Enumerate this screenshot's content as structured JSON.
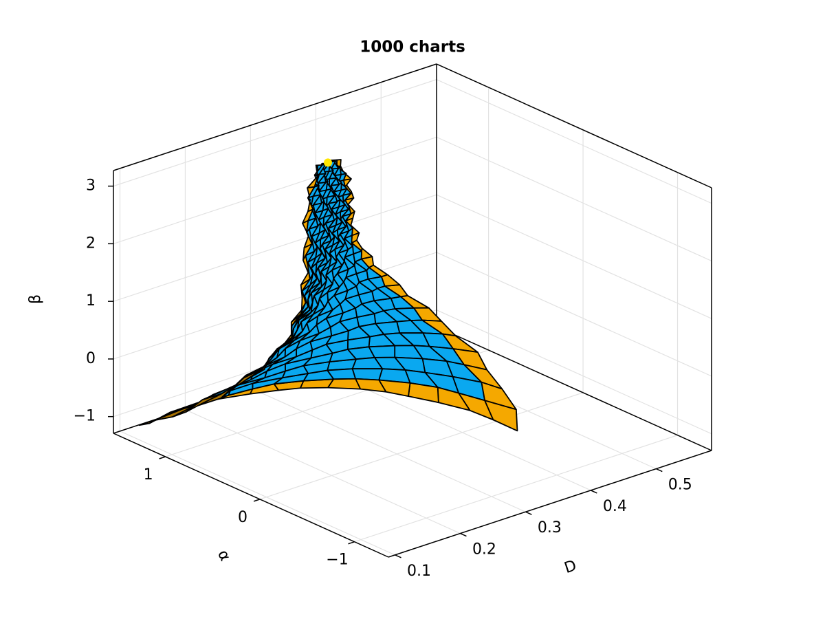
{
  "chart_data": {
    "type": "surface3d",
    "title": "1000 charts",
    "xlabel": "D",
    "ylabel": "α",
    "zlabel": "β",
    "xlim": [
      0.09,
      0.585
    ],
    "ylim": [
      -1.36,
      1.55
    ],
    "zlim": [
      -1.29,
      3.27
    ],
    "xticks": [
      0.1,
      0.2,
      0.3,
      0.4,
      0.5
    ],
    "yticks": [
      {
        "value": -1,
        "label": "−1"
      },
      0,
      1
    ],
    "zticks": [
      {
        "value": -1,
        "label": "−1"
      },
      0,
      1,
      2,
      3
    ],
    "grid": true,
    "surface_colors": {
      "face": "#0aa8f0",
      "face_shaded": "#0a6a9c",
      "edge": "#f5a800",
      "edge_shaded": "#a87200",
      "outline": "#000000"
    },
    "point": {
      "x": 0.31,
      "y": 0.8,
      "z": 3.14,
      "color": "#ffe600"
    }
  }
}
